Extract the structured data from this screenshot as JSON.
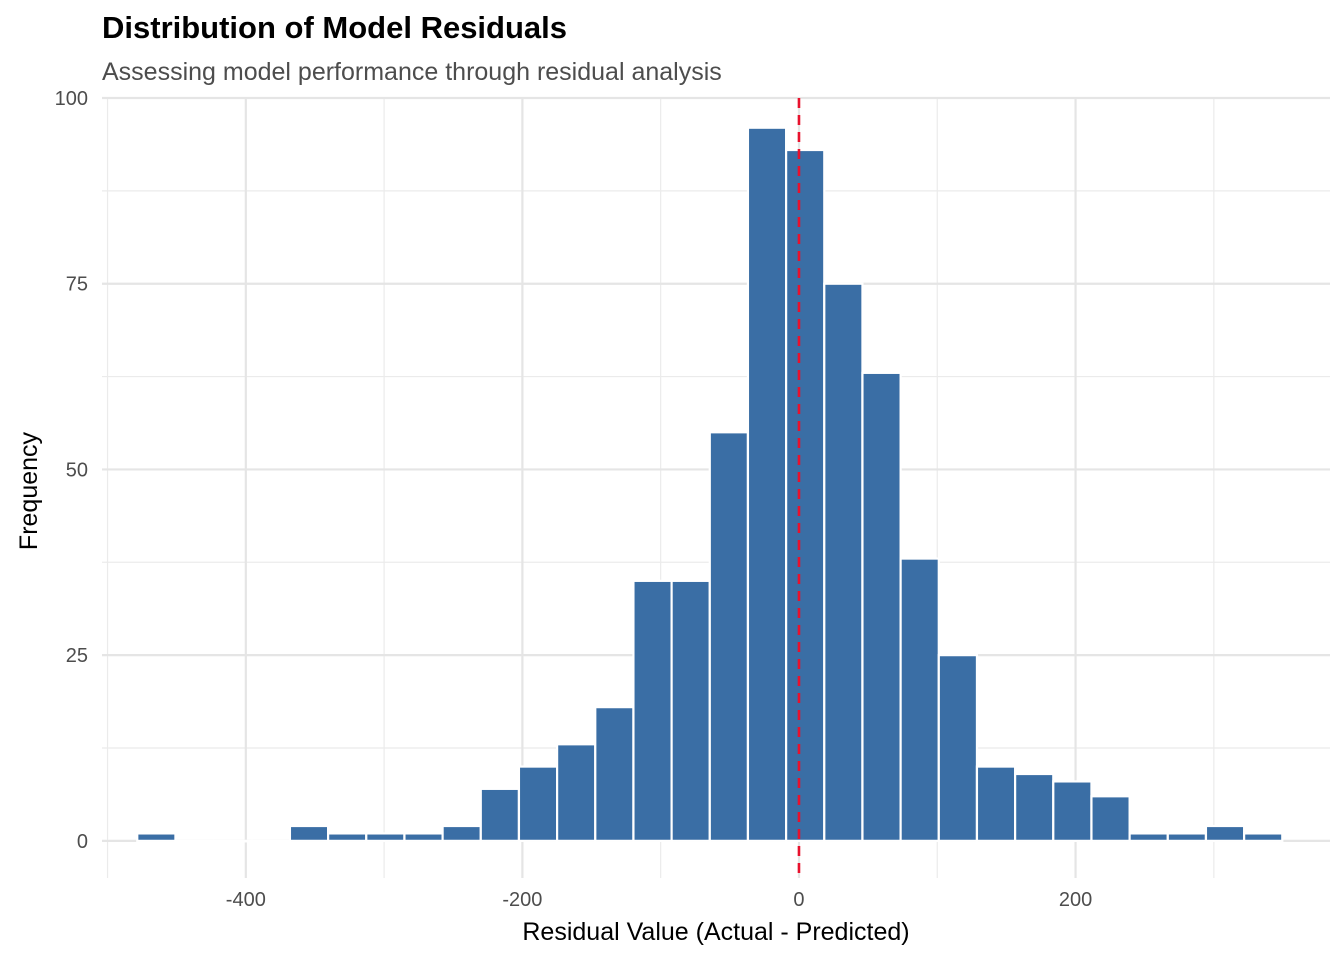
{
  "chart_data": {
    "type": "bar",
    "title": "Distribution of Model Residuals",
    "subtitle": "Assessing model performance through residual analysis",
    "xlabel": "Residual Value (Actual - Predicted)",
    "ylabel": "Frequency",
    "xlim": [
      -504,
      384
    ],
    "ylim": [
      -5,
      100
    ],
    "x_ticks": [
      -400,
      -200,
      0,
      200
    ],
    "x_tick_labels": [
      "-400",
      "-200",
      "0",
      "200"
    ],
    "y_ticks": [
      0,
      25,
      50,
      75,
      100
    ],
    "y_tick_labels": [
      "0",
      "25",
      "50",
      "75",
      "100"
    ],
    "bin_width": 27.6,
    "bins": [
      {
        "x0": -478.5,
        "x1": -450.9,
        "count": 1
      },
      {
        "x0": -450.9,
        "x1": -423.3,
        "count": 0
      },
      {
        "x0": -423.3,
        "x1": -395.7,
        "count": 0
      },
      {
        "x0": -395.7,
        "x1": -368.1,
        "count": 0
      },
      {
        "x0": -368.1,
        "x1": -340.5,
        "count": 2
      },
      {
        "x0": -340.5,
        "x1": -312.9,
        "count": 1
      },
      {
        "x0": -312.9,
        "x1": -285.3,
        "count": 1
      },
      {
        "x0": -285.3,
        "x1": -257.7,
        "count": 1
      },
      {
        "x0": -257.7,
        "x1": -230.1,
        "count": 2
      },
      {
        "x0": -230.1,
        "x1": -202.5,
        "count": 7
      },
      {
        "x0": -202.5,
        "x1": -174.9,
        "count": 10
      },
      {
        "x0": -174.9,
        "x1": -147.3,
        "count": 13
      },
      {
        "x0": -147.3,
        "x1": -119.7,
        "count": 18
      },
      {
        "x0": -119.7,
        "x1": -92.1,
        "count": 35
      },
      {
        "x0": -92.1,
        "x1": -64.5,
        "count": 35
      },
      {
        "x0": -64.5,
        "x1": -36.9,
        "count": 55
      },
      {
        "x0": -36.9,
        "x1": -9.3,
        "count": 96
      },
      {
        "x0": -9.3,
        "x1": 18.3,
        "count": 93
      },
      {
        "x0": 18.3,
        "x1": 45.9,
        "count": 75
      },
      {
        "x0": 45.9,
        "x1": 73.5,
        "count": 63
      },
      {
        "x0": 73.5,
        "x1": 101.1,
        "count": 38
      },
      {
        "x0": 101.1,
        "x1": 128.7,
        "count": 25
      },
      {
        "x0": 128.7,
        "x1": 156.3,
        "count": 10
      },
      {
        "x0": 156.3,
        "x1": 183.9,
        "count": 9
      },
      {
        "x0": 183.9,
        "x1": 211.5,
        "count": 8
      },
      {
        "x0": 211.5,
        "x1": 239.1,
        "count": 6
      },
      {
        "x0": 239.1,
        "x1": 266.7,
        "count": 1
      },
      {
        "x0": 266.7,
        "x1": 294.3,
        "count": 1
      },
      {
        "x0": 294.3,
        "x1": 321.9,
        "count": 2
      },
      {
        "x0": 321.9,
        "x1": 349.5,
        "count": 1
      }
    ],
    "reference_line": {
      "x": 0,
      "style": "dashed"
    },
    "bar_color": "#3a6ea5",
    "bar_edge_color": "#ffffff",
    "reference_color": "#e8112d",
    "grid": true,
    "legend": "none"
  }
}
